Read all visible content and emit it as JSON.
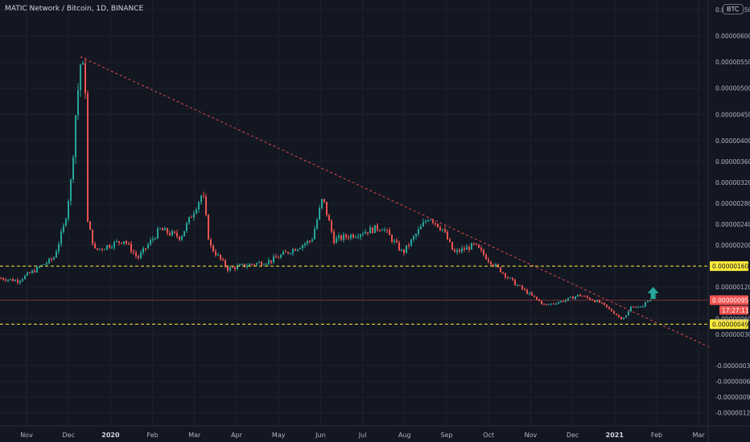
{
  "header": {
    "title": "MATIC Network / Bitcoin, 1D, BINANCE",
    "currency_badge": "BTC"
  },
  "chart_data": {
    "type": "candlestick",
    "title": "MATIC Network / Bitcoin, 1D, BINANCE",
    "y_unit": "BTC",
    "ylim": [
      -1.3e-06,
      6.5e-06
    ],
    "y_ticks": [
      "0.00000650",
      "0.00000600",
      "0.00000550",
      "0.00000500",
      "0.00000450",
      "0.00000400",
      "0.00000360",
      "0.00000320",
      "0.00000280",
      "0.00000240",
      "0.00000200",
      "0.00000120",
      "0.00000060",
      "0.00000030",
      "-0.00000030",
      "-0.00000060",
      "-0.00000090",
      "-0.00000120"
    ],
    "x_ticks": [
      "Nov",
      "Dec",
      "2020",
      "Feb",
      "Mar",
      "Apr",
      "May",
      "Jun",
      "Jul",
      "Aug",
      "Sep",
      "Oct",
      "Nov",
      "Dec",
      "2021",
      "Feb",
      "Mar"
    ],
    "x_ticks_bold": [
      "2020",
      "2021"
    ],
    "price_anchors": [
      {
        "date": "2019-10-10",
        "close": 1.38e-06
      },
      {
        "date": "2019-10-25",
        "close": 1.32e-06
      },
      {
        "date": "2019-11-05",
        "close": 1.5e-06
      },
      {
        "date": "2019-11-20",
        "close": 1.75e-06
      },
      {
        "date": "2019-11-28",
        "close": 2.4e-06
      },
      {
        "date": "2019-12-03",
        "close": 3.3e-06
      },
      {
        "date": "2019-12-06",
        "close": 4.5e-06
      },
      {
        "date": "2019-12-10",
        "close": 5.6e-06
      },
      {
        "date": "2019-12-13",
        "close": 5e-06
      },
      {
        "date": "2019-12-14",
        "close": 2.5e-06
      },
      {
        "date": "2019-12-20",
        "close": 1.9e-06
      },
      {
        "date": "2020-01-10",
        "close": 2.1e-06
      },
      {
        "date": "2020-01-20",
        "close": 1.75e-06
      },
      {
        "date": "2020-02-05",
        "close": 2.3e-06
      },
      {
        "date": "2020-02-20",
        "close": 2.15e-06
      },
      {
        "date": "2020-03-07",
        "close": 3e-06
      },
      {
        "date": "2020-03-12",
        "close": 2e-06
      },
      {
        "date": "2020-03-25",
        "close": 1.55e-06
      },
      {
        "date": "2020-04-25",
        "close": 1.7e-06
      },
      {
        "date": "2020-05-10",
        "close": 1.9e-06
      },
      {
        "date": "2020-05-25",
        "close": 2.1e-06
      },
      {
        "date": "2020-06-02",
        "close": 2.9e-06
      },
      {
        "date": "2020-06-10",
        "close": 2.1e-06
      },
      {
        "date": "2020-07-01",
        "close": 2.25e-06
      },
      {
        "date": "2020-07-15",
        "close": 2.35e-06
      },
      {
        "date": "2020-07-30",
        "close": 1.85e-06
      },
      {
        "date": "2020-08-18",
        "close": 2.55e-06
      },
      {
        "date": "2020-08-28",
        "close": 2.3e-06
      },
      {
        "date": "2020-09-05",
        "close": 1.85e-06
      },
      {
        "date": "2020-09-20",
        "close": 2e-06
      },
      {
        "date": "2020-10-01",
        "close": 1.7e-06
      },
      {
        "date": "2020-10-20",
        "close": 1.25e-06
      },
      {
        "date": "2020-11-10",
        "close": 8.5e-07
      },
      {
        "date": "2020-11-25",
        "close": 9.5e-07
      },
      {
        "date": "2020-12-05",
        "close": 1.05e-06
      },
      {
        "date": "2020-12-20",
        "close": 9e-07
      },
      {
        "date": "2020-12-28",
        "close": 7.5e-07
      },
      {
        "date": "2021-01-04",
        "close": 6e-07
      },
      {
        "date": "2021-01-08",
        "close": 6.5e-07
      },
      {
        "date": "2021-01-12",
        "close": 8.5e-07
      },
      {
        "date": "2021-01-18",
        "close": 8e-07
      },
      {
        "date": "2021-01-24",
        "close": 9.5e-07
      }
    ],
    "price_rows": [
      [
        1.48e-06,
        1.25e-06
      ],
      [
        1.42e-06,
        1.28e-06
      ],
      [
        1.39e-06,
        1.25e-06
      ],
      [
        1.36e-06,
        1.21e-06
      ],
      [
        1.39e-06,
        1.2e-06
      ],
      [
        1.41e-06,
        1.25e-06
      ],
      [
        1.48e-06,
        1.25e-06
      ],
      [
        1.53e-06,
        1.27e-06
      ],
      [
        1.57e-06,
        1.39e-06
      ],
      [
        1.62e-06,
        1.35e-06
      ],
      [
        1.72e-06,
        1.45e-06
      ],
      [
        1.83e-06,
        1.57e-06
      ],
      [
        2.4e-06,
        1.62e-06
      ],
      [
        2.64e-06,
        2.22e-06
      ],
      [
        3.67e-06,
        2.55e-06
      ],
      [
        4.08e-06,
        3.24e-06
      ],
      [
        4.44e-06,
        3.53e-06
      ],
      [
        5.78e-06,
        4.37e-06
      ],
      [
        5.83e-06,
        5.28e-06
      ],
      [
        5.8e-06,
        4.85e-06
      ],
      [
        5.19e-06,
        2.44e-06
      ],
      [
        2.42e-06,
        1.81e-06
      ],
      [
        2.01e-06,
        1.75e-06
      ],
      [
        2.06e-06,
        1.83e-06
      ],
      [
        1.98e-06,
        1.82e-06
      ],
      [
        2.04e-06,
        1.76e-06
      ],
      [
        2.19e-06,
        1.84e-06
      ],
      [
        2.13e-06,
        1.98e-06
      ],
      [
        2.19e-06,
        1.75e-06
      ],
      [
        2.1e-06,
        1.7e-06
      ],
      [
        2.01e-06,
        1.84e-06
      ],
      [
        1.81e-06,
        1.63e-06
      ],
      [
        1.89e-06,
        1.67e-06
      ],
      [
        1.94e-06,
        1.63e-06
      ],
      [
        1.94e-06,
        1.64e-06
      ],
      [
        2.01e-06,
        1.68e-06
      ],
      [
        2.14e-06,
        1.83e-06
      ],
      [
        2.38e-06,
        1.96e-06
      ],
      [
        2.29e-06,
        2.13e-06
      ],
      [
        2.42e-06,
        2.08e-06
      ],
      [
        2.39e-06,
        2.08e-06
      ],
      [
        2.43e-06,
        2.06e-06
      ],
      [
        2.17e-06,
        1.94e-06
      ],
      [
        2.26e-06,
        1.98e-06
      ],
      [
        2.28e-06,
        1.96e-06
      ],
      [
        3.02e-06,
        2.06e-06
      ],
      [
        3.07e-06,
        2.82e-06
      ],
      [
        2.91e-06,
        1.84e-06
      ],
      [
        2.14e-06,
        1.81e-06
      ],
      [
        1.95e-06,
        1.47e-06
      ],
      [
        1.68e-06,
        1.45e-06
      ],
      [
        1.64e-06,
        1.51e-06
      ],
      [
        1.69e-06,
        1.45e-06
      ],
      [
        1.72e-06,
        1.53e-06
      ],
      [
        1.71e-06,
        1.55e-06
      ],
      [
        1.66e-06,
        1.48e-06
      ],
      [
        1.76e-06,
        1.52e-06
      ],
      [
        1.69e-06,
        1.51e-06
      ],
      [
        1.78e-06,
        1.55e-06
      ],
      [
        1.8e-06,
        1.55e-06
      ],
      [
        1.71e-06,
        1.58e-06
      ],
      [
        1.89e-06,
        1.66e-06
      ],
      [
        1.93e-06,
        1.74e-06
      ],
      [
        1.86e-06,
        1.67e-06
      ],
      [
        1.97e-06,
        1.69e-06
      ],
      [
        1.98e-06,
        1.76e-06
      ],
      [
        1.97e-06,
        1.62e-06
      ],
      [
        2e-06,
        1.77e-06
      ],
      [
        2.06e-06,
        1.88e-06
      ],
      [
        2.1e-06,
        1.93e-06
      ],
      [
        2.2e-06,
        2.03e-06
      ],
      [
        2.23e-06,
        1.96e-06
      ],
      [
        2.29e-06,
        1.86e-06
      ],
      [
        3.1e-06,
        2.01e-06
      ],
      [
        3.03e-06,
        2.74e-06
      ],
      [
        2.96e-06,
        2.04e-06
      ],
      [
        2.33e-06,
        1.97e-06
      ],
      [
        2.28e-06,
        1.98e-06
      ],
      [
        2.3e-06,
        1.99e-06
      ],
      [
        2.21e-06,
        1.94e-06
      ],
      [
        2.19e-06,
        1.99e-06
      ],
      [
        2.25e-06,
        2.08e-06
      ],
      [
        2.32e-06,
        2.06e-06
      ],
      [
        2.33e-06,
        2.11e-06
      ],
      [
        2.36e-06,
        2.18e-06
      ],
      [
        2.45e-06,
        2.19e-06
      ],
      [
        2.38e-06,
        2.2e-06
      ],
      [
        2.54e-06,
        2.17e-06
      ],
      [
        2.4e-06,
        2.17e-06
      ],
      [
        2.43e-06,
        2.17e-06
      ],
      [
        2.29e-06,
        2.05e-06
      ],
      [
        2.24e-06,
        1.81e-06
      ],
      [
        1.92e-06,
        1.7e-06
      ],
      [
        1.97e-06,
        1.73e-06
      ],
      [
        1.97e-06,
        1.76e-06
      ],
      [
        1.99e-06,
        1.81e-06
      ],
      [
        2.34e-06,
        1.87e-06
      ],
      [
        2.6e-06,
        2.22e-06
      ],
      [
        2.73e-06,
        2.34e-06
      ],
      [
        2.6e-06,
        2.26e-06
      ],
      [
        2.57e-06,
        2.13e-06
      ],
      [
        2.49e-06,
        2.17e-06
      ],
      [
        2.37e-06,
        1.96e-06
      ],
      [
        2.08e-06,
        1.75e-06
      ],
      [
        1.98e-06,
        1.72e-06
      ],
      [
        1.94e-06,
        1.8e-06
      ],
      [
        1.93e-06,
        1.75e-06
      ],
      [
        2.11e-06,
        1.83e-06
      ],
      [
        2.06e-06,
        1.85e-06
      ],
      [
        1.96e-06,
        1.81e-06
      ],
      [
        2e-06,
        1.62e-06
      ],
      [
        1.88e-06,
        1.6e-06
      ],
      [
        1.75e-06,
        1.54e-06
      ],
      [
        1.64e-06,
        1.41e-06
      ],
      [
        1.5e-06,
        1.22e-06
      ],
      [
        1.35e-06,
        1.16e-06
      ],
      [
        1.27e-06,
        1.13e-06
      ],
      [
        1.21e-06,
        9.6e-07
      ],
      [
        1.04e-06,
        8.5e-07
      ],
      [
        1.03e-06,
        7.5e-07
      ],
      [
        9.6e-07,
        7.3e-07
      ],
      [
        9.5e-07,
        8.2e-07
      ],
      [
        1.01e-06,
        8.6e-07
      ],
      [
        1.02e-06,
        8.8e-07
      ],
      [
        9.8e-07,
        8.7e-07
      ],
      [
        1e-06,
        9e-07
      ],
      [
        1.12e-06,
        9.1e-07
      ],
      [
        1.11e-06,
        9.4e-07
      ],
      [
        1.06e-06,
        9.1e-07
      ],
      [
        1.05e-06,
        9e-07
      ],
      [
        1.02e-06,
        9.1e-07
      ],
      [
        9.8e-07,
        8.5e-07
      ],
      [
        9.6e-07,
        8.2e-07
      ],
      [
        9.4e-07,
        7.7e-07
      ],
      [
        9.1e-07,
        7.1e-07
      ],
      [
        8.2e-07,
        6.3e-07
      ],
      [
        7.5e-07,
        6.1e-07
      ],
      [
        7.1e-07,
        5.2e-07
      ],
      [
        7.7e-07,
        5.5e-07
      ],
      [
        7.5e-07,
        5.7e-07
      ],
      [
        6.8e-07,
        5.5e-07
      ],
      [
        8.4e-07,
        6.3e-07
      ],
      [
        9.8e-07,
        7.8e-07
      ],
      [
        9.4e-07,
        7.9e-07
      ],
      [
        8.9e-07,
        7.6e-07
      ],
      [
        9.1e-07,
        7.4e-07
      ],
      [
        9.1e-07,
        7.7e-07
      ],
      [
        9.7e-07,
        8.2e-07
      ],
      [
        9.6e-07,
        8.7e-07
      ],
      [
        1.03e-06,
        8.7e-07
      ]
    ],
    "trendline": {
      "style": "dashed",
      "color": "#e24a4a",
      "from": {
        "date": "2019-12-10",
        "price": 5.6e-06
      },
      "to": {
        "date": "2021-03-10",
        "price": 5e-08
      }
    },
    "horizontal_levels": [
      {
        "price": 1.6e-06,
        "label": "0.00000160",
        "style": "dashed",
        "color": "#ffeb3b"
      },
      {
        "price": 4.9e-07,
        "label": "0.00000049",
        "style": "dashed",
        "color": "#ffeb3b"
      }
    ],
    "current_price": {
      "price": 9.5e-07,
      "label": "0.00000095",
      "countdown": "17:27:11",
      "color": "#ef5350"
    },
    "annotation": {
      "type": "arrow-up",
      "color": "#26a69a",
      "date": "2021-01-28",
      "price": 1.08e-06
    },
    "up_color": "#26a69a",
    "down_color": "#ef5350",
    "grid": true,
    "background": "#131722"
  }
}
